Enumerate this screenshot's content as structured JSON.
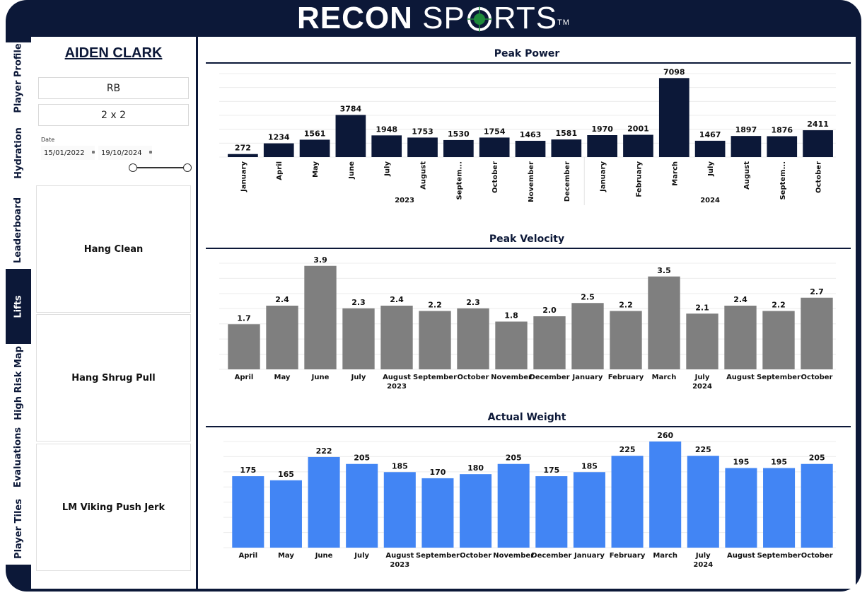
{
  "app": {
    "logo_left": "RECON",
    "logo_right": "SP",
    "logo_right2": "RTS",
    "logo_tm": "TM"
  },
  "nav": {
    "tabs": [
      {
        "label": "Player Profile",
        "active": false
      },
      {
        "label": "Hydration",
        "active": false
      },
      {
        "label": "Leaderboard",
        "active": false
      },
      {
        "label": "Lifts",
        "active": true
      },
      {
        "label": "High Risk Map",
        "active": false
      },
      {
        "label": "Evaluations",
        "active": false
      },
      {
        "label": "Player Tiles",
        "active": false
      }
    ]
  },
  "player": {
    "name": "AIDEN CLARK",
    "position": "RB",
    "sets_reps": "2 x 2"
  },
  "date_filter": {
    "label": "Date",
    "start": "15/01/2022",
    "end": "19/10/2024"
  },
  "lifts": [
    "Hang Clean",
    "Hang Shrug Pull",
    "LM Viking Push Jerk"
  ],
  "colors": {
    "navy": "#0c1838",
    "gray": "#7f7f7f",
    "blue": "#4285f4"
  },
  "chart_data": [
    {
      "type": "bar",
      "title": "Peak Power",
      "color": "#0c1838",
      "label_orientation": "vertical",
      "categories": [
        "January",
        "April",
        "May",
        "June",
        "July",
        "August",
        "Septem...",
        "October",
        "November",
        "December",
        "January",
        "February",
        "March",
        "July",
        "August",
        "Septem...",
        "October"
      ],
      "values": [
        272,
        1234,
        1561,
        3784,
        1948,
        1753,
        1530,
        1754,
        1463,
        1581,
        1970,
        2001,
        7098,
        1467,
        1897,
        1876,
        2411
      ],
      "groups": [
        {
          "label": "2023",
          "count": 10
        },
        {
          "label": "2024",
          "count": 7
        }
      ],
      "ylim": [
        0,
        7500
      ],
      "grid": true
    },
    {
      "type": "bar",
      "title": "Peak Velocity",
      "color": "#7f7f7f",
      "label_orientation": "horizontal",
      "categories": [
        "April",
        "May",
        "June",
        "July",
        "August",
        "September",
        "October",
        "November",
        "December",
        "January",
        "February",
        "March",
        "July",
        "August",
        "September",
        "October"
      ],
      "values": [
        1.7,
        2.4,
        3.9,
        2.3,
        2.4,
        2.2,
        2.3,
        1.8,
        2.0,
        2.5,
        2.2,
        3.5,
        2.1,
        2.4,
        2.2,
        2.7
      ],
      "value_labels": [
        "1.7",
        "2.4",
        "3.9",
        "2.3",
        "2.4",
        "2.2",
        "2.3",
        "1.8",
        "2.0",
        "2.5",
        "2.2",
        "3.5",
        "2.1",
        "2.4",
        "2.2",
        "2.7"
      ],
      "groups": [
        {
          "label": "2023",
          "count": 9
        },
        {
          "label": "2024",
          "count": 7
        }
      ],
      "ylim": [
        0,
        4.0
      ],
      "grid": true
    },
    {
      "type": "bar",
      "title": "Actual Weight",
      "color": "#4285f4",
      "label_orientation": "horizontal",
      "categories": [
        "April",
        "May",
        "June",
        "July",
        "August",
        "September",
        "October",
        "November",
        "December",
        "January",
        "February",
        "March",
        "July",
        "August",
        "September",
        "October"
      ],
      "values": [
        175,
        165,
        222,
        205,
        185,
        170,
        180,
        205,
        175,
        185,
        225,
        260,
        225,
        195,
        195,
        205
      ],
      "groups": [
        {
          "label": "2023",
          "count": 9
        },
        {
          "label": "2024",
          "count": 7
        }
      ],
      "ylim": [
        0,
        260
      ],
      "grid": true
    }
  ]
}
